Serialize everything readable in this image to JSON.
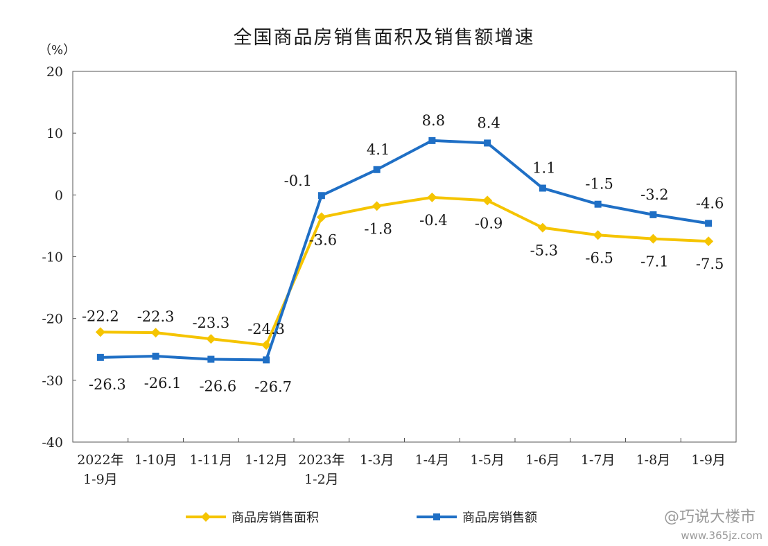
{
  "chart_data": {
    "type": "line",
    "title": "全国商品房销售面积及销售额增速",
    "unit": "（%）",
    "ylim": [
      -40,
      20
    ],
    "yticks": [
      20,
      10,
      0,
      -10,
      -20,
      -30,
      -40
    ],
    "categories": [
      [
        "2022年",
        "1-9月"
      ],
      [
        "1-10月"
      ],
      [
        "1-11月"
      ],
      [
        "1-12月"
      ],
      [
        "2023年",
        "1-2月"
      ],
      [
        "1-3月"
      ],
      [
        "1-4月"
      ],
      [
        "1-5月"
      ],
      [
        "1-6月"
      ],
      [
        "1-7月"
      ],
      [
        "1-8月"
      ],
      [
        "1-9月"
      ]
    ],
    "series": [
      {
        "name": "商品房销售面积",
        "color": "#f5c400",
        "marker": "diamond",
        "values": [
          -22.2,
          -22.3,
          -23.3,
          -24.3,
          -3.6,
          -1.8,
          -0.4,
          -0.9,
          -5.3,
          -6.5,
          -7.1,
          -7.5
        ],
        "labels": [
          "-22.2",
          "-22.3",
          "-23.3",
          "-24.3",
          "-3.6",
          "-1.8",
          "-0.4",
          "-0.9",
          "-5.3",
          "-6.5",
          "-7.1",
          "-7.5"
        ]
      },
      {
        "name": "商品房销售额",
        "color": "#1f6fc5",
        "marker": "square",
        "values": [
          -26.3,
          -26.1,
          -26.6,
          -26.7,
          -0.1,
          4.1,
          8.8,
          8.4,
          1.1,
          -1.5,
          -3.2,
          -4.6
        ],
        "labels": [
          "-26.3",
          "-26.1",
          "-26.6",
          "-26.7",
          "-0.1",
          "4.1",
          "8.8",
          "8.4",
          "1.1",
          "-1.5",
          "-3.2",
          "-4.6"
        ]
      }
    ],
    "grid": false,
    "legend_position": "bottom"
  },
  "watermark": {
    "text": "@巧说大楼市",
    "url": "www.365jz.com"
  }
}
